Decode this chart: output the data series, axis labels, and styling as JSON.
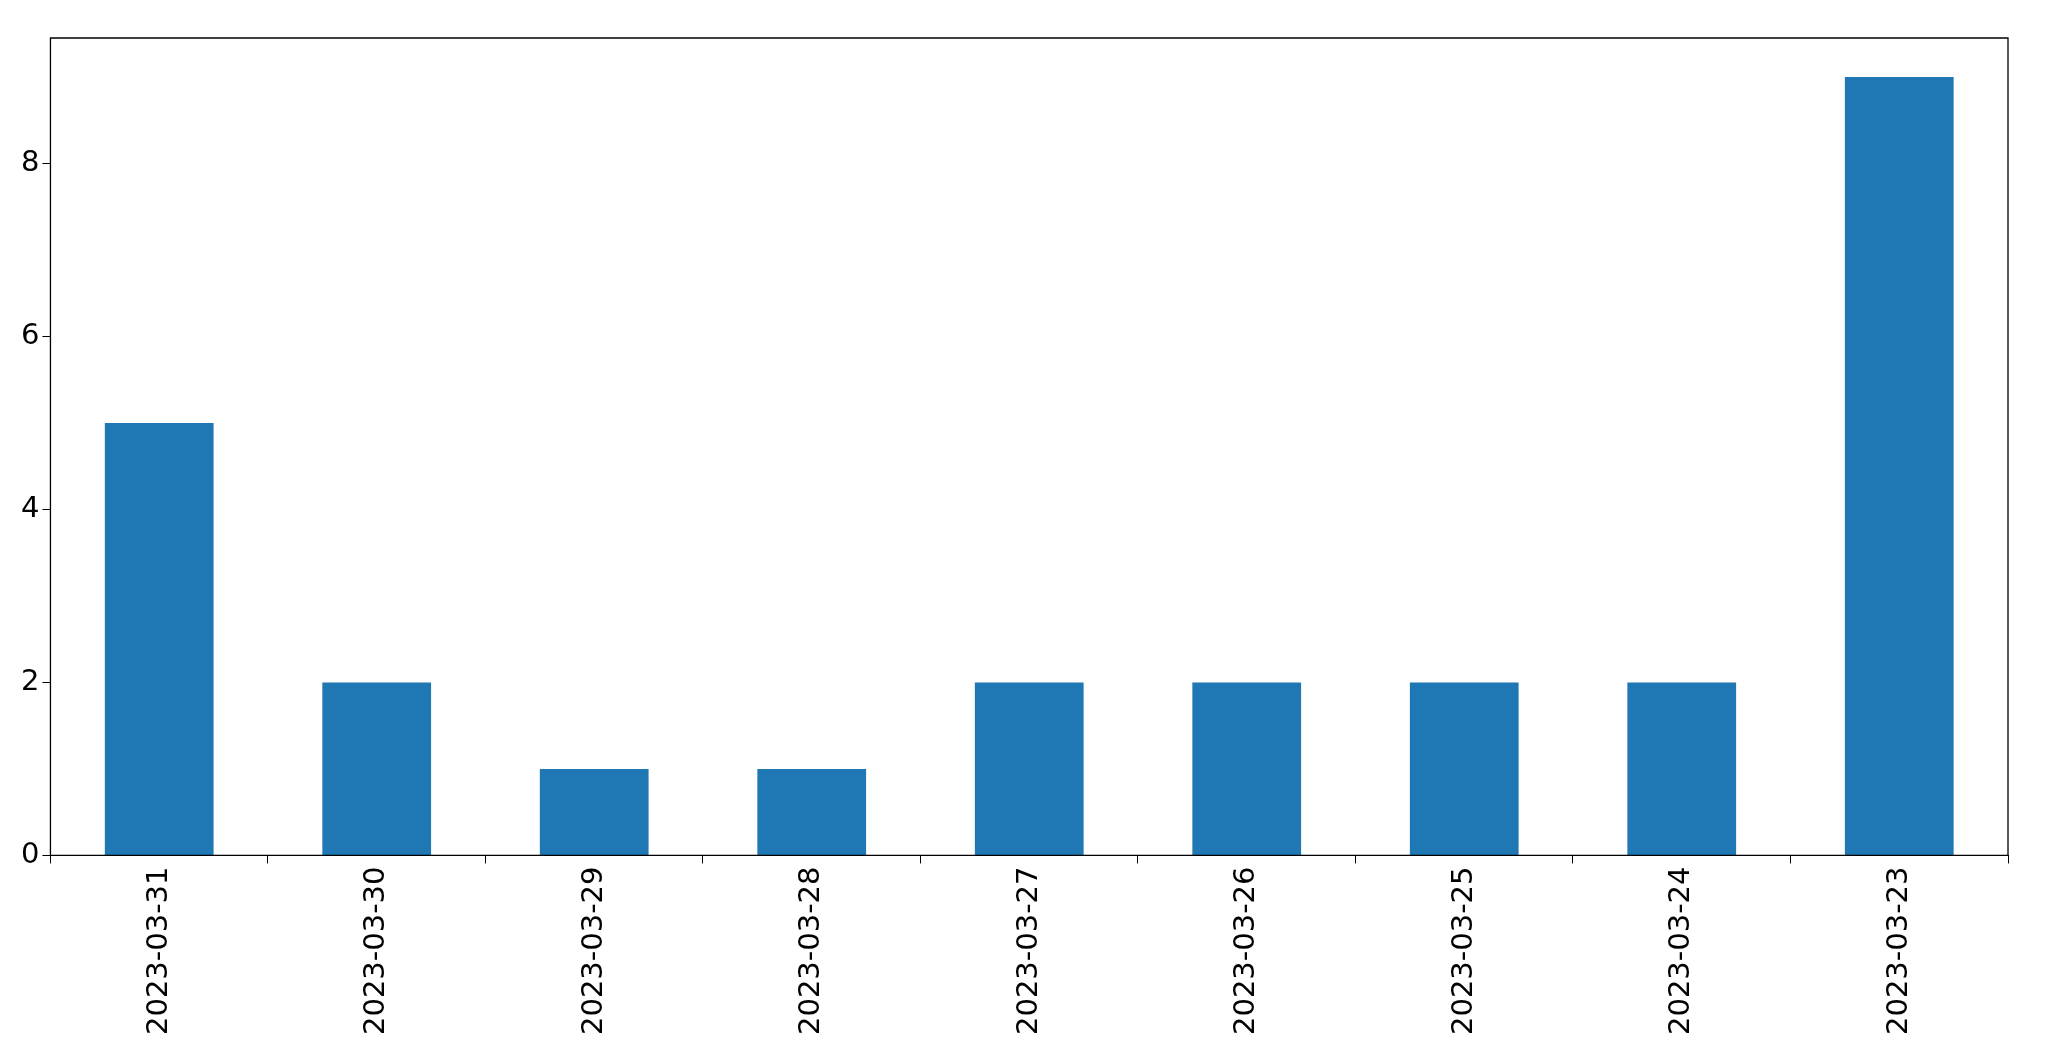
{
  "chart_data": {
    "type": "bar",
    "categories": [
      "2023-03-31",
      "2023-03-30",
      "2023-03-29",
      "2023-03-28",
      "2023-03-27",
      "2023-03-26",
      "2023-03-25",
      "2023-03-24",
      "2023-03-23"
    ],
    "values": [
      5,
      2,
      1,
      1,
      2,
      2,
      2,
      2,
      9
    ],
    "color": "#1f77b4",
    "ylim": [
      0,
      9.45
    ],
    "yticks": [
      0,
      2,
      4,
      6,
      8
    ],
    "grid": false,
    "legend": false
  }
}
